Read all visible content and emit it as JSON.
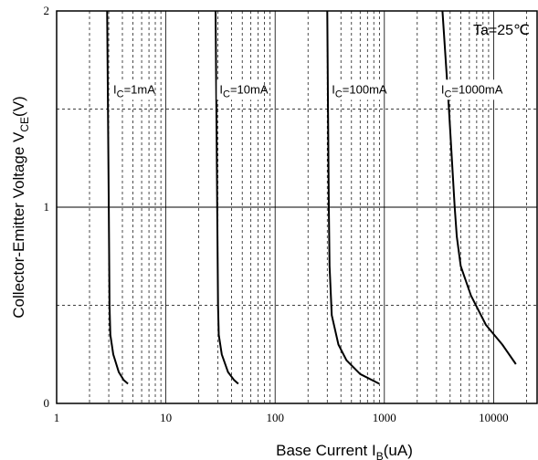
{
  "chart_data": {
    "type": "line",
    "x_scale": "log",
    "xlim": [
      1,
      25000
    ],
    "ylim": [
      0,
      2
    ],
    "grid": true,
    "x_ticks": [
      {
        "value": 1,
        "label": "1"
      },
      {
        "value": 10,
        "label": "10"
      },
      {
        "value": 100,
        "label": "100"
      },
      {
        "value": 1000,
        "label": "1000"
      },
      {
        "value": 10000,
        "label": "10000"
      }
    ],
    "y_ticks": [
      {
        "value": 0,
        "label": "0"
      },
      {
        "value": 1,
        "label": "1"
      },
      {
        "value": 2,
        "label": "2"
      }
    ],
    "xlabel": {
      "main": "Base Current  I",
      "sub": "B",
      "unit": "(uA)"
    },
    "ylabel": {
      "main": "Collector-Emitter Voltage  V",
      "sub": "CE",
      "unit": "(V)"
    },
    "condition": "Ta=25℃",
    "series": [
      {
        "label_main": "I",
        "label_sub": "C",
        "label_rest": "=1mA",
        "label_pos": [
          3.3,
          1.58
        ],
        "points": [
          [
            2.9,
            2.0
          ],
          [
            2.95,
            1.5
          ],
          [
            3.0,
            1.0
          ],
          [
            3.05,
            0.5
          ],
          [
            3.1,
            0.35
          ],
          [
            3.3,
            0.25
          ],
          [
            3.7,
            0.16
          ],
          [
            4.1,
            0.12
          ],
          [
            4.5,
            0.1
          ]
        ]
      },
      {
        "label_main": "I",
        "label_sub": "C",
        "label_rest": "=10mA",
        "label_pos": [
          31,
          1.58
        ],
        "points": [
          [
            28.5,
            2.0
          ],
          [
            29,
            1.5
          ],
          [
            29.5,
            1.0
          ],
          [
            30,
            0.5
          ],
          [
            30.5,
            0.35
          ],
          [
            32.5,
            0.25
          ],
          [
            37,
            0.16
          ],
          [
            42,
            0.12
          ],
          [
            46,
            0.1
          ]
        ]
      },
      {
        "label_main": "I",
        "label_sub": "C",
        "label_rest": "=100mA",
        "label_pos": [
          330,
          1.58
        ],
        "points": [
          [
            300,
            2.0
          ],
          [
            305,
            1.5
          ],
          [
            310,
            1.0
          ],
          [
            315,
            0.7
          ],
          [
            330,
            0.45
          ],
          [
            380,
            0.3
          ],
          [
            450,
            0.22
          ],
          [
            600,
            0.15
          ],
          [
            900,
            0.1
          ]
        ]
      },
      {
        "label_main": "I",
        "label_sub": "C",
        "label_rest": "=1000mA",
        "label_pos": [
          3300,
          1.58
        ],
        "points": [
          [
            3400,
            2.0
          ],
          [
            3900,
            1.5
          ],
          [
            4400,
            1.0
          ],
          [
            4600,
            0.85
          ],
          [
            5000,
            0.7
          ],
          [
            6200,
            0.55
          ],
          [
            8500,
            0.4
          ],
          [
            12000,
            0.3
          ],
          [
            16000,
            0.2
          ]
        ]
      }
    ]
  }
}
